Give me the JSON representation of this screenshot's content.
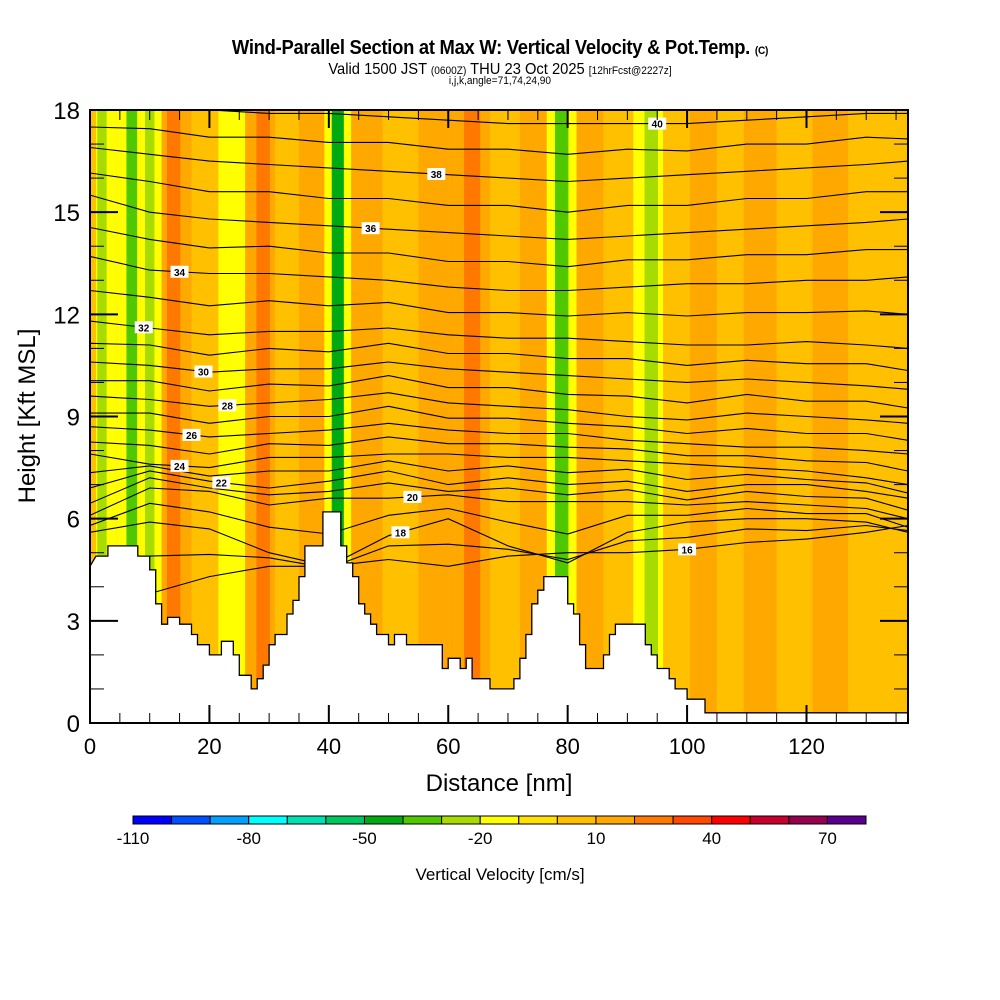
{
  "title": {
    "main": "Wind-Parallel Section at Max W: Vertical Velocity & Pot.Temp.",
    "copyright": "(C)",
    "valid_prefix": "Valid 1500 JST",
    "valid_utc": "(0600Z)",
    "valid_date": "THU 23 Oct 2025",
    "forecast": "[12hrFcst@2227z]",
    "indices": "i,j,k,angle=71,74,24,90"
  },
  "chart_data": {
    "type": "heatmap",
    "title": "Wind-Parallel Section at Max W: Vertical Velocity & Pot.Temp.",
    "xlabel": "Distance [nm]",
    "ylabel": "Height [Kft MSL]",
    "xlim": [
      0,
      137
    ],
    "ylim": [
      0,
      18
    ],
    "xticks": [
      "0",
      "20",
      "40",
      "60",
      "80",
      "100",
      "120"
    ],
    "xtick_values": [
      0,
      20,
      40,
      60,
      80,
      100,
      120
    ],
    "yticks": [
      "0",
      "3",
      "6",
      "9",
      "12",
      "15",
      "18"
    ],
    "ytick_values": [
      0,
      3,
      6,
      9,
      12,
      15,
      18
    ],
    "colorbar": {
      "label": "Vertical Velocity [cm/s]",
      "boundaries": [
        -110,
        -100,
        -90,
        -80,
        -70,
        -60,
        -50,
        -40,
        -30,
        -20,
        -10,
        0,
        10,
        20,
        30,
        40,
        50,
        60,
        70,
        80
      ],
      "tick_labels": [
        "-110",
        "-80",
        "-50",
        "-20",
        "10",
        "40",
        "70"
      ],
      "tick_values": [
        -110,
        -80,
        -50,
        -20,
        10,
        40,
        70
      ],
      "colors": [
        "#0000ff",
        "#0050ff",
        "#00a0ff",
        "#00ffff",
        "#00e0b0",
        "#00c860",
        "#00aa10",
        "#50c800",
        "#a8dc00",
        "#ffff00",
        "#ffe000",
        "#ffc000",
        "#ffa800",
        "#ff7800",
        "#ff4800",
        "#ff0000",
        "#c80030",
        "#960050",
        "#5a0090"
      ]
    },
    "vertical_velocity_bands": [
      {
        "x": 2,
        "w": -25
      },
      {
        "x": 7,
        "w": -35
      },
      {
        "x": 10,
        "w": -25
      },
      {
        "x": 14,
        "w": 25
      },
      {
        "x": 20,
        "w": 5
      },
      {
        "x": 23,
        "w": -15
      },
      {
        "x": 29,
        "w": 25
      },
      {
        "x": 33,
        "w": 5
      },
      {
        "x": 37,
        "w": 10
      },
      {
        "x": 41.5,
        "w": -45
      },
      {
        "x": 46,
        "w": 15
      },
      {
        "x": 52,
        "w": 5
      },
      {
        "x": 58,
        "w": 10
      },
      {
        "x": 64,
        "w": 25
      },
      {
        "x": 70,
        "w": 5
      },
      {
        "x": 74,
        "w": 10
      },
      {
        "x": 79,
        "w": -35
      },
      {
        "x": 84,
        "w": 15
      },
      {
        "x": 88,
        "w": 5
      },
      {
        "x": 94,
        "w": -30
      },
      {
        "x": 98,
        "w": 5
      },
      {
        "x": 103,
        "w": 15
      },
      {
        "x": 107,
        "w": 0
      },
      {
        "x": 112,
        "w": 15
      },
      {
        "x": 118,
        "w": 5
      },
      {
        "x": 124,
        "w": 15
      },
      {
        "x": 130,
        "w": 5
      }
    ],
    "terrain_kft": [
      [
        0,
        4.6
      ],
      [
        1,
        4.9
      ],
      [
        3,
        4.9
      ],
      [
        3,
        5.2
      ],
      [
        8,
        5.2
      ],
      [
        8,
        4.9
      ],
      [
        10,
        4.9
      ],
      [
        10,
        4.5
      ],
      [
        11,
        4.5
      ],
      [
        11,
        3.5
      ],
      [
        12,
        3.5
      ],
      [
        12,
        2.9
      ],
      [
        13,
        2.9
      ],
      [
        13,
        3.1
      ],
      [
        15,
        3.1
      ],
      [
        15,
        2.9
      ],
      [
        17,
        2.9
      ],
      [
        17,
        2.6
      ],
      [
        18,
        2.6
      ],
      [
        18,
        2.3
      ],
      [
        20,
        2.3
      ],
      [
        20,
        2.0
      ],
      [
        22,
        2.0
      ],
      [
        22,
        2.4
      ],
      [
        24,
        2.4
      ],
      [
        24,
        2.0
      ],
      [
        25,
        2.0
      ],
      [
        25,
        1.4
      ],
      [
        27,
        1.4
      ],
      [
        27,
        1.0
      ],
      [
        28,
        1.0
      ],
      [
        28,
        1.3
      ],
      [
        29,
        1.3
      ],
      [
        29,
        1.7
      ],
      [
        30,
        1.7
      ],
      [
        30,
        2.3
      ],
      [
        31,
        2.3
      ],
      [
        31,
        2.6
      ],
      [
        33,
        2.6
      ],
      [
        33,
        3.2
      ],
      [
        34,
        3.2
      ],
      [
        34,
        3.6
      ],
      [
        35,
        3.6
      ],
      [
        35,
        4.3
      ],
      [
        36,
        4.3
      ],
      [
        36,
        5.2
      ],
      [
        39,
        5.2
      ],
      [
        39,
        6.2
      ],
      [
        42,
        6.2
      ],
      [
        42,
        5.2
      ],
      [
        43,
        5.2
      ],
      [
        43,
        4.7
      ],
      [
        44,
        4.7
      ],
      [
        44,
        4.3
      ],
      [
        45,
        4.3
      ],
      [
        45,
        3.5
      ],
      [
        46,
        3.5
      ],
      [
        46,
        3.2
      ],
      [
        47,
        3.2
      ],
      [
        47,
        2.9
      ],
      [
        48,
        2.9
      ],
      [
        48,
        2.6
      ],
      [
        50,
        2.6
      ],
      [
        50,
        2.3
      ],
      [
        51,
        2.3
      ],
      [
        51,
        2.6
      ],
      [
        53,
        2.6
      ],
      [
        53,
        2.3
      ],
      [
        59,
        2.3
      ],
      [
        59,
        1.6
      ],
      [
        60,
        1.6
      ],
      [
        60,
        1.9
      ],
      [
        62,
        1.9
      ],
      [
        62,
        1.6
      ],
      [
        63,
        1.6
      ],
      [
        63,
        1.9
      ],
      [
        64,
        1.9
      ],
      [
        64,
        1.3
      ],
      [
        67,
        1.3
      ],
      [
        67,
        1.0
      ],
      [
        71,
        1.0
      ],
      [
        71,
        1.3
      ],
      [
        72,
        1.3
      ],
      [
        72,
        1.9
      ],
      [
        73,
        1.9
      ],
      [
        73,
        2.6
      ],
      [
        74,
        2.6
      ],
      [
        74,
        3.5
      ],
      [
        75,
        3.5
      ],
      [
        75,
        3.9
      ],
      [
        76,
        3.9
      ],
      [
        76,
        4.3
      ],
      [
        80,
        4.3
      ],
      [
        80,
        3.5
      ],
      [
        81,
        3.5
      ],
      [
        81,
        3.2
      ],
      [
        82,
        3.2
      ],
      [
        82,
        2.3
      ],
      [
        83,
        2.3
      ],
      [
        83,
        1.6
      ],
      [
        86,
        1.6
      ],
      [
        86,
        2.0
      ],
      [
        87,
        2.0
      ],
      [
        87,
        2.6
      ],
      [
        88,
        2.6
      ],
      [
        88,
        2.9
      ],
      [
        93,
        2.9
      ],
      [
        93,
        2.3
      ],
      [
        94,
        2.3
      ],
      [
        94,
        2.0
      ],
      [
        95,
        2.0
      ],
      [
        95,
        1.6
      ],
      [
        97,
        1.6
      ],
      [
        97,
        1.3
      ],
      [
        98,
        1.3
      ],
      [
        98,
        1.0
      ],
      [
        100,
        1.0
      ],
      [
        100,
        0.7
      ],
      [
        103,
        0.7
      ],
      [
        103,
        0.3
      ],
      [
        137,
        0.3
      ]
    ],
    "theta_contours": [
      {
        "label": "16",
        "values": [
          3.8,
          3.8,
          4.3,
          4.6,
          4.6,
          4.8,
          4.6,
          4.9,
          5.0,
          5.0,
          5.1,
          5.3,
          5.4,
          5.6,
          5.8
        ],
        "label_x": 100
      },
      {
        "label": "18",
        "values": [
          5.6,
          5.9,
          5.7,
          5.0,
          4.6,
          5.5,
          6.0,
          5.2,
          4.7,
          5.6,
          5.9,
          6.0,
          6.0,
          5.9,
          5.6
        ],
        "label_x": 52
      },
      {
        "label": "20",
        "values": [
          6.1,
          6.9,
          6.8,
          6.4,
          6.6,
          6.6,
          6.7,
          6.5,
          6.5,
          6.5,
          6.4,
          6.5,
          6.4,
          6.3,
          6.0
        ],
        "label_x": 54
      },
      {
        "label": "22",
        "values": [
          6.9,
          7.4,
          7.1,
          6.9,
          7.1,
          7.4,
          7.0,
          7.2,
          7.0,
          7.1,
          6.8,
          7.0,
          7.0,
          6.8,
          6.6
        ],
        "label_x": 22
      },
      {
        "label": "24",
        "values": [
          7.9,
          7.6,
          7.5,
          7.8,
          7.8,
          7.9,
          7.9,
          7.8,
          7.8,
          7.7,
          7.6,
          7.5,
          7.4,
          7.2,
          7.0
        ],
        "label_x": 15
      },
      {
        "label": "26",
        "values": [
          8.7,
          8.6,
          8.4,
          8.5,
          8.6,
          8.8,
          8.6,
          8.5,
          8.5,
          8.3,
          8.2,
          8.1,
          8.1,
          8.0,
          7.9
        ],
        "label_x": 17
      },
      {
        "label": "28",
        "values": [
          9.6,
          9.5,
          9.3,
          9.4,
          9.5,
          9.7,
          9.4,
          9.3,
          9.2,
          9.0,
          8.9,
          9.1,
          9.0,
          8.9,
          8.8
        ],
        "label_x": 23
      },
      {
        "label": "30",
        "values": [
          10.6,
          10.5,
          10.3,
          10.4,
          10.4,
          10.6,
          10.4,
          10.3,
          10.2,
          10.1,
          10.0,
          10.1,
          10.0,
          9.9,
          9.8
        ],
        "label_x": 19
      },
      {
        "label": "32",
        "values": [
          11.8,
          11.6,
          11.4,
          11.5,
          11.5,
          11.6,
          11.4,
          11.3,
          11.3,
          11.2,
          11.1,
          11.1,
          11.2,
          11.1,
          11.0
        ],
        "label_x": 9
      },
      {
        "label": "34",
        "values": [
          13.7,
          13.3,
          13.2,
          13.2,
          13.1,
          13.0,
          12.8,
          12.7,
          12.7,
          12.8,
          12.9,
          12.9,
          13.0,
          13.0,
          13.1
        ],
        "label_x": 15
      },
      {
        "label": "36",
        "values": [
          15.5,
          15.0,
          14.8,
          14.7,
          14.6,
          14.5,
          14.4,
          14.3,
          14.2,
          14.3,
          14.4,
          14.5,
          14.6,
          14.7,
          14.8
        ],
        "label_x": 47
      },
      {
        "label": "38",
        "values": [
          16.9,
          16.7,
          16.5,
          16.4,
          16.3,
          16.2,
          16.1,
          16.0,
          15.9,
          16.0,
          16.1,
          16.2,
          16.3,
          16.4,
          16.5
        ],
        "label_x": 58
      },
      {
        "label": "40",
        "values": [
          18.2,
          18.1,
          18.0,
          17.9,
          17.9,
          17.8,
          17.7,
          17.6,
          17.6,
          17.6,
          17.6,
          17.7,
          17.8,
          17.9,
          17.9
        ],
        "label_x": 95
      }
    ],
    "contour_x": [
      0,
      10,
      20,
      30,
      40,
      50,
      60,
      70,
      80,
      90,
      100,
      110,
      120,
      130,
      137
    ]
  },
  "contour_label_positions_text": {
    "labels_upper": [
      "38",
      "36",
      "34",
      "32",
      "30",
      "28",
      "26",
      "24",
      "22",
      "20",
      "18",
      "16",
      "40"
    ]
  }
}
